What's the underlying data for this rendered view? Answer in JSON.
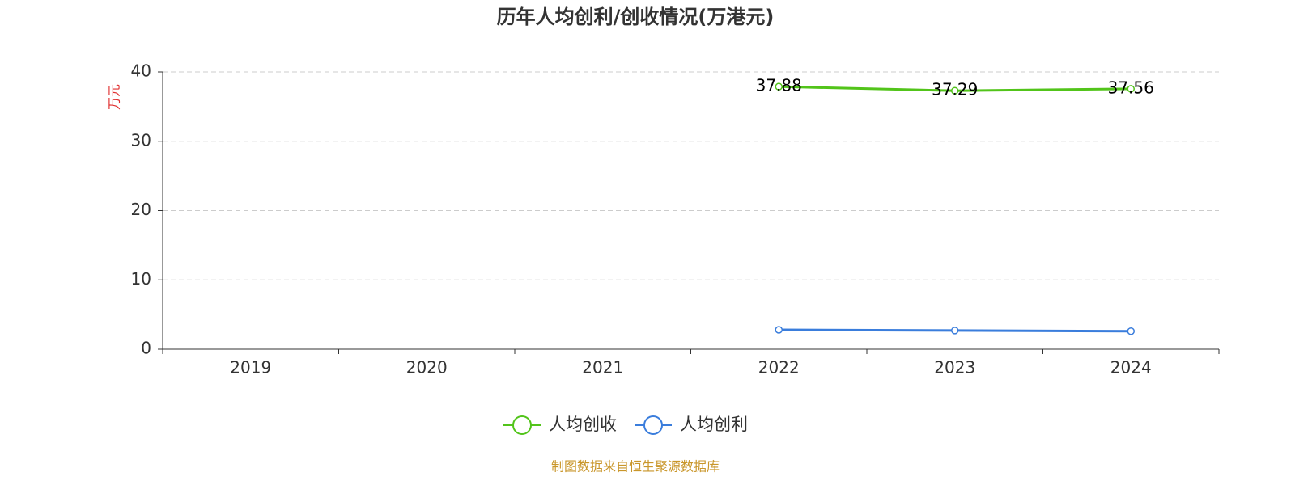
{
  "chart_data": {
    "type": "line",
    "title": "历年人均创利/创收情况(万港元)",
    "y_label": "万元",
    "categories": [
      "2019",
      "2020",
      "2021",
      "2022",
      "2023",
      "2024"
    ],
    "series": [
      {
        "name": "人均创收",
        "color": "#52c41a",
        "values": [
          null,
          null,
          null,
          37.88,
          37.29,
          37.56
        ],
        "labels": true
      },
      {
        "name": "人均创利",
        "color": "#3a7ddc",
        "values": [
          null,
          null,
          null,
          2.8,
          2.7,
          2.6
        ],
        "labels": false
      }
    ],
    "ylim": [
      0,
      40
    ],
    "yticks": [
      0,
      10,
      20,
      30,
      40
    ],
    "grid": true,
    "source": "制图数据来自恒生聚源数据库"
  }
}
